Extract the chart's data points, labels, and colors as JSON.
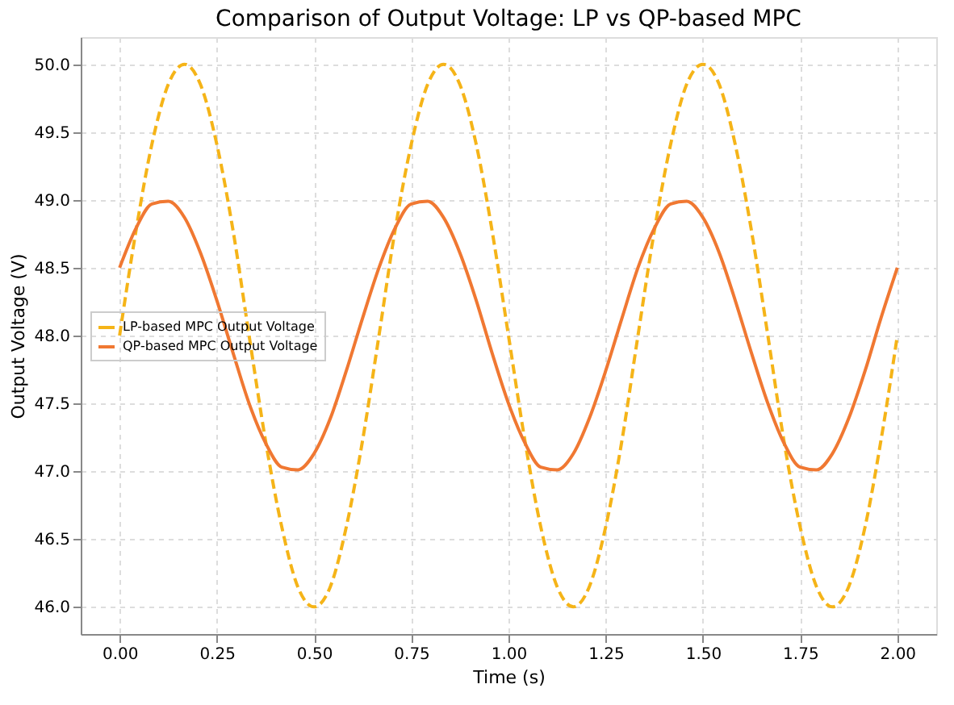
{
  "chart_data": {
    "type": "line",
    "title": "Comparison of Output Voltage: LP vs QP-based MPC",
    "xlabel": "Time (s)",
    "ylabel": "Output Voltage (V)",
    "x": [
      0,
      0.042,
      0.083,
      0.125,
      0.167,
      0.208,
      0.25,
      0.292,
      0.333,
      0.375,
      0.417,
      0.458,
      0.5,
      0.542,
      0.583,
      0.625,
      0.667,
      0.708,
      0.75,
      0.792,
      0.833,
      0.875,
      0.917,
      0.958,
      1.0,
      1.042,
      1.083,
      1.125,
      1.167,
      1.208,
      1.25,
      1.292,
      1.333,
      1.375,
      1.417,
      1.458,
      1.5,
      1.542,
      1.583,
      1.625,
      1.667,
      1.708,
      1.75,
      1.792,
      1.833,
      1.875,
      1.917,
      1.958,
      2.0
    ],
    "series": [
      {
        "name": "LP-based MPC Output Voltage",
        "color": "#f5b418",
        "line_style": "dashed",
        "values": [
          48,
          48.77,
          49.41,
          49.85,
          50,
          49.85,
          49.41,
          48.77,
          48,
          47.23,
          46.59,
          46.15,
          46,
          46.15,
          46.59,
          47.23,
          48,
          48.77,
          49.41,
          49.85,
          50,
          49.85,
          49.41,
          48.77,
          48,
          47.23,
          46.59,
          46.15,
          46,
          46.15,
          46.59,
          47.23,
          48,
          48.77,
          49.41,
          49.85,
          50,
          49.85,
          49.41,
          48.77,
          48,
          47.23,
          46.59,
          46.15,
          46,
          46.15,
          46.59,
          47.23,
          48
        ]
      },
      {
        "name": "QP-based MPC Output Voltage",
        "color": "#f07832",
        "line_style": "solid",
        "values": [
          48.5,
          48.79,
          48.97,
          48.99,
          48.87,
          48.61,
          48.26,
          47.87,
          47.5,
          47.21,
          47.03,
          47.01,
          47.13,
          47.39,
          47.74,
          48.13,
          48.5,
          48.79,
          48.97,
          48.99,
          48.87,
          48.61,
          48.26,
          47.87,
          47.5,
          47.21,
          47.03,
          47.01,
          47.13,
          47.39,
          47.74,
          48.13,
          48.5,
          48.79,
          48.97,
          48.99,
          48.87,
          48.61,
          48.26,
          47.87,
          47.5,
          47.21,
          47.03,
          47.01,
          47.13,
          47.39,
          47.74,
          48.13,
          48.5
        ]
      }
    ],
    "xlim": [
      -0.1,
      2.1
    ],
    "ylim": [
      45.8,
      50.2
    ],
    "xticks": [
      {
        "value": 0,
        "label": "0.00"
      },
      {
        "value": 0.25,
        "label": "0.25"
      },
      {
        "value": 0.5,
        "label": "0.50"
      },
      {
        "value": 0.75,
        "label": "0.75"
      },
      {
        "value": 1,
        "label": "1.00"
      },
      {
        "value": 1.25,
        "label": "1.25"
      },
      {
        "value": 1.5,
        "label": "1.50"
      },
      {
        "value": 1.75,
        "label": "1.75"
      },
      {
        "value": 2,
        "label": "2.00"
      }
    ],
    "yticks": [
      {
        "value": 46,
        "label": "46.0"
      },
      46.5,
      {
        "value": 47,
        "label": "47.0"
      },
      47.5,
      {
        "value": 48,
        "label": "48.0"
      },
      48.5,
      {
        "value": 49,
        "label": "49.0"
      },
      49.5,
      {
        "value": 50,
        "label": "50.0"
      }
    ],
    "grid": true,
    "legend": "left",
    "marker": "none"
  }
}
